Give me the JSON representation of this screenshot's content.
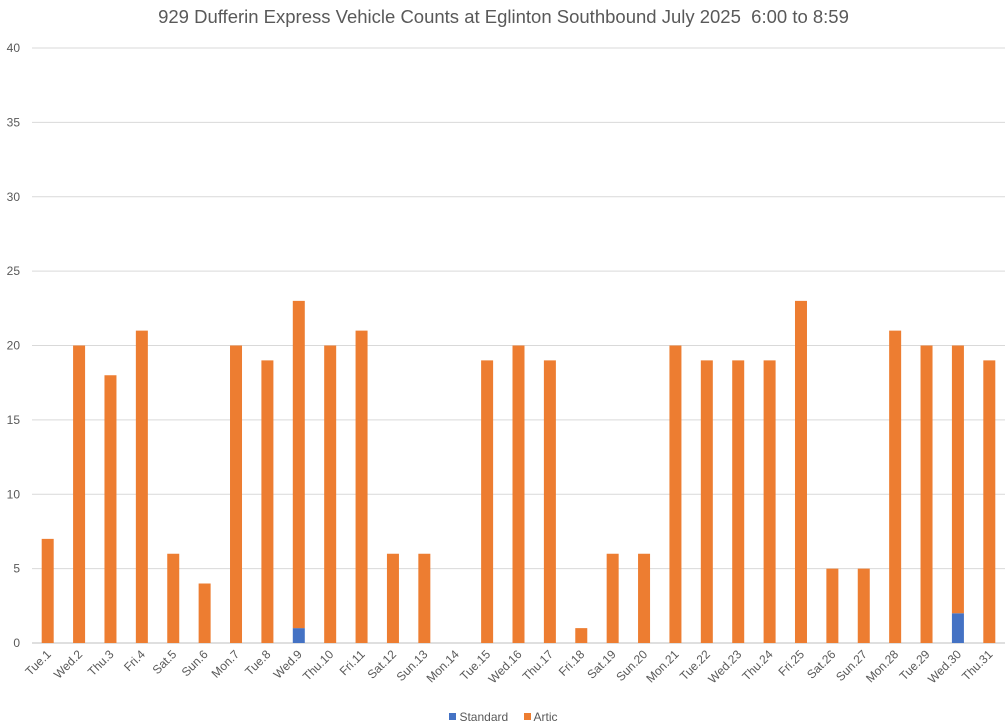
{
  "chart_data": {
    "type": "bar",
    "stacked": true,
    "title": "929 Dufferin Express Vehicle Counts at Eglinton Southbound July 2025  6:00 to 8:59",
    "xlabel": "",
    "ylabel": "",
    "ylim": [
      0,
      40
    ],
    "yticks": [
      0,
      5,
      10,
      15,
      20,
      25,
      30,
      35,
      40
    ],
    "grid": true,
    "legend": "bottom",
    "categories": [
      "Tue.1",
      "Wed.2",
      "Thu.3",
      "Fri.4",
      "Sat.5",
      "Sun.6",
      "Mon.7",
      "Tue.8",
      "Wed.9",
      "Thu.10",
      "Fri.11",
      "Sat.12",
      "Sun.13",
      "Mon.14",
      "Tue.15",
      "Wed.16",
      "Thu.17",
      "Fri.18",
      "Sat.19",
      "Sun.20",
      "Mon.21",
      "Tue.22",
      "Wed.23",
      "Thu.24",
      "Fri.25",
      "Sat.26",
      "Sun.27",
      "Mon.28",
      "Tue.29",
      "Wed.30",
      "Thu.31"
    ],
    "series": [
      {
        "name": "Standard",
        "color": "#4472C4",
        "values": [
          0,
          0,
          0,
          0,
          0,
          0,
          0,
          0,
          1,
          0,
          0,
          0,
          0,
          0,
          0,
          0,
          0,
          0,
          0,
          0,
          0,
          0,
          0,
          0,
          0,
          0,
          0,
          0,
          0,
          2,
          0
        ]
      },
      {
        "name": "Artic",
        "color": "#ED7D31",
        "values": [
          7,
          20,
          18,
          21,
          6,
          4,
          20,
          19,
          22,
          20,
          21,
          6,
          6,
          0,
          19,
          20,
          19,
          1,
          6,
          6,
          20,
          19,
          19,
          19,
          23,
          5,
          5,
          21,
          20,
          18,
          19
        ]
      }
    ]
  }
}
